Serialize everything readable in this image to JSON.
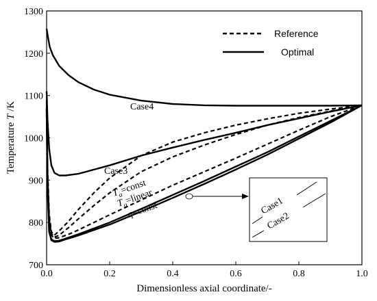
{
  "chart_data": {
    "type": "line",
    "xlabel": "Dimensionless axial coordinate/-",
    "ylabel_prefix": "Temperature ",
    "ylabel_var": "T",
    "ylabel_suffix": " /K",
    "xlim": [
      0,
      1
    ],
    "ylim": [
      700,
      1300
    ],
    "x_ticks": [
      "0.0",
      "0.2",
      "0.4",
      "0.6",
      "0.8",
      "1.0"
    ],
    "y_ticks": [
      "700",
      "800",
      "900",
      "1000",
      "1100",
      "1200",
      "1300"
    ],
    "grid": false,
    "legend_position": "top-right",
    "legend": [
      {
        "label": "Reference",
        "style": "dashed"
      },
      {
        "label": "Optimal",
        "style": "solid"
      }
    ],
    "series": [
      {
        "name": "Case4",
        "style": "solid",
        "x": [
          0.0,
          0.005,
          0.01,
          0.02,
          0.04,
          0.07,
          0.1,
          0.15,
          0.2,
          0.3,
          0.4,
          0.5,
          0.6,
          0.7,
          0.8,
          0.9,
          1.0
        ],
        "y": [
          1258,
          1235,
          1215,
          1195,
          1170,
          1148,
          1132,
          1114,
          1102,
          1088,
          1080,
          1077,
          1076,
          1076,
          1076,
          1076,
          1077
        ]
      },
      {
        "name": "Case3",
        "style": "solid",
        "x": [
          0.0,
          0.003,
          0.008,
          0.015,
          0.025,
          0.04,
          0.06,
          0.1,
          0.2,
          0.3,
          0.4,
          0.5,
          0.6,
          0.7,
          0.8,
          0.9,
          1.0
        ],
        "y": [
          1110,
          1040,
          975,
          935,
          917,
          911,
          911,
          915,
          935,
          958,
          977,
          995,
          1012,
          1030,
          1046,
          1062,
          1077
        ]
      },
      {
        "name": "Ta=const",
        "style": "dashed",
        "x": [
          0.0,
          0.003,
          0.008,
          0.015,
          0.025,
          0.04,
          0.07,
          0.1,
          0.15,
          0.2,
          0.3,
          0.4,
          0.5,
          0.6,
          0.7,
          0.8,
          0.9,
          1.0
        ],
        "y": [
          1090,
          930,
          820,
          778,
          770,
          780,
          803,
          830,
          870,
          905,
          958,
          990,
          1012,
          1030,
          1045,
          1058,
          1068,
          1077
        ]
      },
      {
        "name": "Ta=linear",
        "style": "dashed",
        "x": [
          0.0,
          0.003,
          0.008,
          0.015,
          0.025,
          0.04,
          0.07,
          0.1,
          0.15,
          0.2,
          0.3,
          0.4,
          0.5,
          0.6,
          0.7,
          0.8,
          0.9,
          1.0
        ],
        "y": [
          1085,
          920,
          810,
          774,
          765,
          770,
          788,
          808,
          840,
          870,
          920,
          955,
          983,
          1008,
          1030,
          1048,
          1063,
          1077
        ]
      },
      {
        "name": "q=const",
        "style": "dashed",
        "x": [
          0.0,
          0.003,
          0.008,
          0.015,
          0.025,
          0.04,
          0.07,
          0.1,
          0.15,
          0.2,
          0.3,
          0.4,
          0.5,
          0.6,
          0.7,
          0.8,
          0.9,
          1.0
        ],
        "y": [
          1080,
          910,
          800,
          770,
          762,
          764,
          772,
          782,
          800,
          818,
          853,
          888,
          920,
          952,
          985,
          1018,
          1050,
          1077
        ]
      },
      {
        "name": "Case1",
        "style": "solid",
        "x": [
          0.0,
          0.003,
          0.008,
          0.015,
          0.025,
          0.04,
          0.06,
          0.1,
          0.2,
          0.3,
          0.4,
          0.5,
          0.6,
          0.7,
          0.8,
          0.9,
          1.0
        ],
        "y": [
          1070,
          880,
          780,
          760,
          756,
          757,
          762,
          772,
          800,
          832,
          865,
          898,
          932,
          966,
          1003,
          1040,
          1077
        ]
      },
      {
        "name": "Case2",
        "style": "solid",
        "x": [
          0.0,
          0.003,
          0.008,
          0.015,
          0.025,
          0.04,
          0.06,
          0.1,
          0.2,
          0.3,
          0.4,
          0.5,
          0.6,
          0.7,
          0.8,
          0.9,
          1.0
        ],
        "y": [
          1070,
          880,
          778,
          758,
          754,
          755,
          760,
          769,
          795,
          826,
          858,
          891,
          925,
          960,
          998,
          1036,
          1077
        ]
      }
    ],
    "annotations": {
      "case4": "Case4",
      "case3": "Case3",
      "ta_const_var": "T",
      "ta_const_sub": "a",
      "ta_const_rest": "=const",
      "ta_linear_var": "T",
      "ta_linear_sub": "a",
      "ta_linear_rest": "=linear",
      "q_const_var": "q",
      "q_const_rest": "=const",
      "inset_case1": "Case1",
      "inset_case2": "Case2"
    }
  }
}
